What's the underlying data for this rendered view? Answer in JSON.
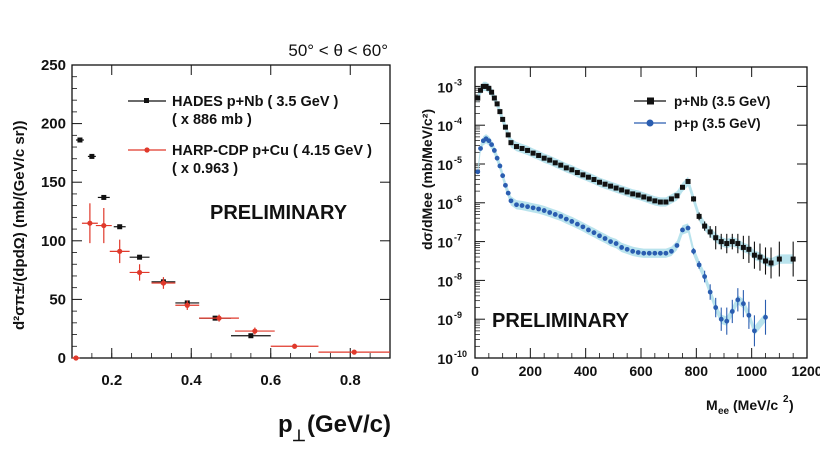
{
  "chart_data": [
    {
      "type": "scatter",
      "title": "50° < θ < 60°",
      "xlabel": "p⊥ (GeV/c)",
      "ylabel": "d²σπ±/(dpdΩ) (mb/(GeV/c sr))",
      "xlim": [
        0.1,
        0.9
      ],
      "ylim": [
        0,
        250
      ],
      "xticks": [
        0.2,
        0.4,
        0.6,
        0.8
      ],
      "xtick_labels": [
        "0.2",
        "0.4",
        "0.6",
        "0.8"
      ],
      "yticks": [
        0,
        50,
        100,
        150,
        200,
        250
      ],
      "ytick_labels": [
        "0",
        "50",
        "100",
        "150",
        "200",
        "250"
      ],
      "annotation": "PRELIMINARY",
      "xlabel_text": "(GeV/c)",
      "xlabel_symbol": "p",
      "ylabel_text": "d²σπ±/(dpdΩ)   (mb/(GeV/c sr))",
      "series": [
        {
          "name": "HADES p+Nb ( 3.5 GeV )",
          "scale": "( x 886 mb )",
          "color": "#111111",
          "points": [
            {
              "x": 0.12,
              "y": 186,
              "xerr": 0.01,
              "yerr": 1
            },
            {
              "x": 0.15,
              "y": 172,
              "xerr": 0.01,
              "yerr": 1
            },
            {
              "x": 0.18,
              "y": 137,
              "xerr": 0.015,
              "yerr": 1
            },
            {
              "x": 0.22,
              "y": 112,
              "xerr": 0.015,
              "yerr": 1
            },
            {
              "x": 0.27,
              "y": 86,
              "xerr": 0.025,
              "yerr": 1
            },
            {
              "x": 0.33,
              "y": 65,
              "xerr": 0.03,
              "yerr": 1
            },
            {
              "x": 0.39,
              "y": 47,
              "xerr": 0.03,
              "yerr": 1
            },
            {
              "x": 0.46,
              "y": 34,
              "xerr": 0.04,
              "yerr": 1
            },
            {
              "x": 0.55,
              "y": 19,
              "xerr": 0.05,
              "yerr": 1
            }
          ]
        },
        {
          "name": "HARP-CDP p+Cu ( 4.15 GeV )",
          "scale": "( x 0.963 )",
          "color": "#e0392b",
          "points": [
            {
              "x": 0.11,
              "y": 0,
              "xerr": 0.01,
              "yerr": 0
            },
            {
              "x": 0.145,
              "y": 115,
              "xerr": 0.02,
              "yerr": 17
            },
            {
              "x": 0.18,
              "y": 113,
              "xerr": 0.02,
              "yerr": 15
            },
            {
              "x": 0.22,
              "y": 91,
              "xerr": 0.025,
              "yerr": 10
            },
            {
              "x": 0.27,
              "y": 73,
              "xerr": 0.025,
              "yerr": 7
            },
            {
              "x": 0.33,
              "y": 64,
              "xerr": 0.03,
              "yerr": 5
            },
            {
              "x": 0.39,
              "y": 45,
              "xerr": 0.03,
              "yerr": 4
            },
            {
              "x": 0.47,
              "y": 34,
              "xerr": 0.05,
              "yerr": 3
            },
            {
              "x": 0.56,
              "y": 23,
              "xerr": 0.05,
              "yerr": 3
            },
            {
              "x": 0.66,
              "y": 10,
              "xerr": 0.06,
              "yerr": 2
            },
            {
              "x": 0.81,
              "y": 5,
              "xerr": 0.09,
              "yerr": 1
            }
          ]
        }
      ]
    },
    {
      "type": "scatter",
      "title": "",
      "xlabel": "Mee (MeV/c²)",
      "ylabel": "dσ/dMee (mb/MeV/c²)",
      "xlim": [
        0,
        1200
      ],
      "ylim_log10": [
        -10,
        -2.5
      ],
      "xticks": [
        0,
        200,
        400,
        600,
        800,
        1000,
        1200
      ],
      "xtick_labels": [
        "0",
        "200",
        "400",
        "600",
        "800",
        "1000",
        "1200"
      ],
      "yticks_log10": [
        -10,
        -9,
        -8,
        -7,
        -6,
        -5,
        -4,
        -3
      ],
      "ytick_labels": [
        "10",
        "10",
        "10",
        "10",
        "10",
        "10",
        "10",
        "10"
      ],
      "ytick_exponents": [
        "-10",
        "-9",
        "-8",
        "-7",
        "-6",
        "-5",
        "-4",
        "-3"
      ],
      "annotation": "PRELIMINARY",
      "xlabel_base": "M",
      "xlabel_sub": "ee",
      "xlabel_unit": "(MeV/c",
      "xlabel_sup": "2",
      "xlabel_close": ")",
      "ylabel_text": "dσ/dMee  (mb/MeV/c²)",
      "band_color": "#a8dce8",
      "series": [
        {
          "name": "p+Nb (3.5 GeV)",
          "color": "#111111",
          "marker": "square",
          "x": [
            10,
            20,
            30,
            40,
            50,
            60,
            70,
            80,
            90,
            100,
            110,
            120,
            130,
            150,
            170,
            190,
            210,
            230,
            250,
            270,
            290,
            310,
            330,
            350,
            370,
            390,
            410,
            430,
            450,
            470,
            490,
            510,
            530,
            550,
            570,
            590,
            610,
            630,
            650,
            670,
            690,
            710,
            730,
            750,
            770,
            790,
            810,
            830,
            850,
            870,
            890,
            910,
            930,
            950,
            970,
            990,
            1010,
            1030,
            1050,
            1070,
            1100,
            1150
          ],
          "log10_y": [
            -3.3,
            -3.1,
            -3.0,
            -3.0,
            -3.05,
            -3.15,
            -3.3,
            -3.45,
            -3.65,
            -3.85,
            -4.05,
            -4.25,
            -4.45,
            -4.55,
            -4.6,
            -4.65,
            -4.72,
            -4.78,
            -4.85,
            -4.9,
            -4.97,
            -5.03,
            -5.1,
            -5.15,
            -5.22,
            -5.28,
            -5.34,
            -5.4,
            -5.47,
            -5.52,
            -5.57,
            -5.62,
            -5.67,
            -5.72,
            -5.77,
            -5.8,
            -5.85,
            -5.9,
            -5.95,
            -5.98,
            -5.98,
            -5.9,
            -5.82,
            -5.6,
            -5.45,
            -5.9,
            -6.35,
            -6.6,
            -6.75,
            -6.9,
            -7.0,
            -7.05,
            -7.0,
            -7.05,
            -7.15,
            -7.2,
            -7.35,
            -7.4,
            -7.5,
            -7.55,
            -7.45,
            -7.45
          ],
          "log10_err": [
            0.05,
            0.05,
            0.05,
            0.05,
            0.05,
            0.05,
            0.05,
            0.05,
            0.05,
            0.05,
            0.05,
            0.05,
            0.05,
            0.05,
            0.05,
            0.05,
            0.05,
            0.05,
            0.05,
            0.05,
            0.05,
            0.05,
            0.05,
            0.05,
            0.05,
            0.05,
            0.05,
            0.05,
            0.05,
            0.05,
            0.05,
            0.05,
            0.05,
            0.05,
            0.05,
            0.05,
            0.05,
            0.05,
            0.05,
            0.05,
            0.05,
            0.05,
            0.05,
            0.05,
            0.05,
            0.07,
            0.1,
            0.12,
            0.15,
            0.3,
            0.2,
            0.25,
            0.2,
            0.25,
            0.3,
            0.35,
            0.35,
            0.35,
            0.35,
            0.4,
            0.45,
            0.45
          ]
        },
        {
          "name": "p+p (3.5 GeV)",
          "color": "#2a5db0",
          "marker": "circle",
          "x": [
            10,
            20,
            30,
            40,
            50,
            60,
            70,
            80,
            90,
            100,
            110,
            120,
            130,
            150,
            170,
            190,
            210,
            230,
            250,
            270,
            290,
            310,
            330,
            350,
            370,
            390,
            410,
            430,
            450,
            470,
            490,
            510,
            530,
            550,
            570,
            590,
            610,
            630,
            650,
            670,
            690,
            710,
            730,
            750,
            770,
            790,
            810,
            830,
            850,
            870,
            890,
            910,
            930,
            950,
            970,
            990,
            1010,
            1050
          ],
          "log10_y": [
            -5.2,
            -4.6,
            -4.4,
            -4.35,
            -4.4,
            -4.5,
            -4.65,
            -4.85,
            -5.05,
            -5.3,
            -5.55,
            -5.75,
            -5.95,
            -6.05,
            -6.07,
            -6.1,
            -6.13,
            -6.16,
            -6.2,
            -6.25,
            -6.3,
            -6.35,
            -6.42,
            -6.48,
            -6.55,
            -6.62,
            -6.7,
            -6.77,
            -6.85,
            -6.92,
            -7.0,
            -7.05,
            -7.15,
            -7.2,
            -7.25,
            -7.28,
            -7.3,
            -7.3,
            -7.3,
            -7.3,
            -7.3,
            -7.25,
            -7.1,
            -6.7,
            -6.65,
            -7.25,
            -7.6,
            -7.9,
            -8.3,
            -8.7,
            -9.0,
            -9.05,
            -8.8,
            -8.5,
            -8.6,
            -8.9,
            -9.3,
            -8.95
          ],
          "log10_err": [
            0.05,
            0.05,
            0.05,
            0.05,
            0.05,
            0.05,
            0.05,
            0.05,
            0.05,
            0.05,
            0.05,
            0.05,
            0.05,
            0.05,
            0.05,
            0.05,
            0.05,
            0.05,
            0.05,
            0.05,
            0.05,
            0.05,
            0.05,
            0.05,
            0.05,
            0.05,
            0.05,
            0.05,
            0.05,
            0.05,
            0.05,
            0.05,
            0.05,
            0.05,
            0.05,
            0.05,
            0.05,
            0.05,
            0.05,
            0.05,
            0.05,
            0.05,
            0.05,
            0.05,
            0.05,
            0.08,
            0.1,
            0.15,
            0.2,
            0.25,
            0.3,
            0.35,
            0.3,
            0.3,
            0.35,
            0.35,
            0.4,
            0.45
          ]
        }
      ]
    }
  ]
}
